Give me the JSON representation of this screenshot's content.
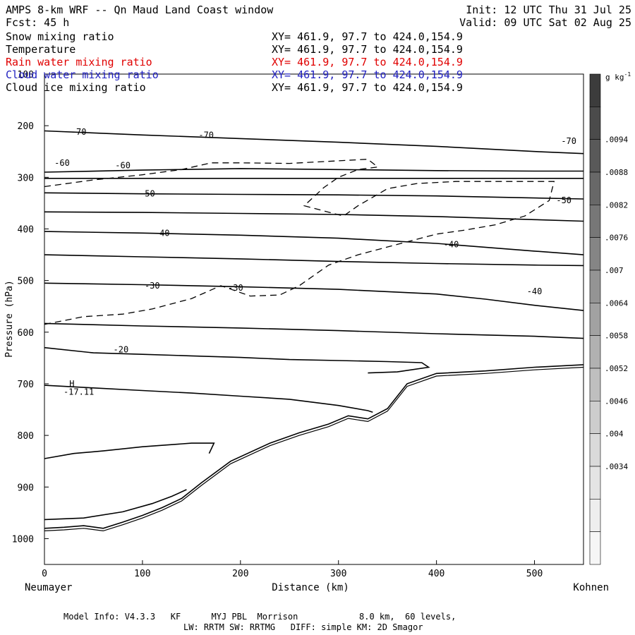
{
  "header": {
    "title": "AMPS 8-km WRF -- Qn Maud Land Coast window",
    "init": "Init: 12 UTC Thu 31 Jul 25",
    "fcst": "Fcst:   45 h",
    "valid": "Valid: 09 UTC Sat 02 Aug 25"
  },
  "legend": [
    {
      "label": "Snow mixing ratio",
      "xy": "XY= 461.9, 97.7 to 424.0,154.9",
      "color": "#000000"
    },
    {
      "label": "Temperature",
      "xy": "XY= 461.9, 97.7 to 424.0,154.9",
      "color": "#000000"
    },
    {
      "label": "Rain water mixing ratio",
      "xy": "XY= 461.9, 97.7 to 424.0,154.9",
      "color": "#e00000"
    },
    {
      "label": "Cloud water mixing ratio",
      "xy": "XY= 461.9, 97.7 to 424.0,154.9",
      "color": "#2020c0"
    },
    {
      "label": "Cloud ice mixing ratio",
      "xy": "XY= 461.9, 97.7 to 424.0,154.9",
      "color": "#000000"
    }
  ],
  "footer": {
    "line1": "Model Info: V4.3.3   KF      MYJ PBL  Morrison            8.0 km,  60 levels,",
    "line2": "LW: RRTM SW: RRTMG   DIFF: simple KM: 2D Smagor"
  },
  "chart_data": {
    "type": "contour",
    "ylabel": "Pressure (hPa)",
    "xlabel": "Distance (km)",
    "x_left_label": "Neumayer",
    "x_right_label": "Kohnen",
    "xlim": [
      0,
      550
    ],
    "ylim": [
      1050,
      100
    ],
    "x_ticks": [
      0,
      100,
      200,
      300,
      400,
      500
    ],
    "y_ticks": [
      100,
      200,
      300,
      400,
      500,
      600,
      700,
      800,
      900,
      1000
    ],
    "colorbar": {
      "unit": "g kg",
      "unit_exp": "-1",
      "ticks": [
        ".0094",
        ".0088",
        ".0082",
        ".0076",
        ".007",
        ".0064",
        ".0058",
        ".0052",
        ".0046",
        ".004",
        ".0034"
      ],
      "colors": [
        "#3c3c3c",
        "#4b4b4b",
        "#595959",
        "#686868",
        "#777777",
        "#858585",
        "#949494",
        "#a2a2a2",
        "#b1b1b1",
        "#bfbfbf",
        "#cdcdcd",
        "#dadada",
        "#e4e4e4",
        "#eeeeee",
        "#f6f6f6"
      ]
    },
    "temperature_contours": [
      {
        "level": -70,
        "points": [
          [
            0,
            210
          ],
          [
            100,
            218
          ],
          [
            200,
            225
          ],
          [
            300,
            232
          ],
          [
            400,
            240
          ],
          [
            500,
            250
          ],
          [
            550,
            254
          ]
        ]
      },
      {
        "level": -70,
        "points": [
          [
            0,
            290
          ],
          [
            100,
            286
          ],
          [
            200,
            283
          ],
          [
            300,
            285
          ],
          [
            400,
            287
          ],
          [
            500,
            288
          ],
          [
            550,
            288
          ]
        ]
      },
      {
        "level": -60,
        "points": [
          [
            0,
            302
          ],
          [
            100,
            302
          ],
          [
            200,
            302
          ],
          [
            300,
            302
          ],
          [
            400,
            302
          ],
          [
            500,
            302
          ],
          [
            550,
            302
          ]
        ]
      },
      {
        "level": -60,
        "points": [
          [
            0,
            330
          ],
          [
            100,
            332
          ],
          [
            200,
            333
          ],
          [
            300,
            334
          ],
          [
            400,
            336
          ],
          [
            500,
            340
          ],
          [
            550,
            342
          ]
        ]
      },
      {
        "level": null,
        "points": [
          [
            0,
            367
          ],
          [
            100,
            368
          ],
          [
            200,
            370
          ],
          [
            300,
            372
          ],
          [
            400,
            376
          ],
          [
            500,
            382
          ],
          [
            550,
            385
          ]
        ]
      },
      {
        "level": -50,
        "points": [
          [
            0,
            405
          ],
          [
            100,
            408
          ],
          [
            200,
            412
          ],
          [
            300,
            418
          ],
          [
            400,
            428
          ],
          [
            500,
            443
          ],
          [
            550,
            450
          ]
        ]
      },
      {
        "level": null,
        "points": [
          [
            0,
            450
          ],
          [
            100,
            454
          ],
          [
            200,
            458
          ],
          [
            300,
            463
          ],
          [
            400,
            467
          ],
          [
            500,
            470
          ],
          [
            550,
            471
          ]
        ]
      },
      {
        "level": -40,
        "points": [
          [
            0,
            505
          ],
          [
            100,
            508
          ],
          [
            200,
            512
          ],
          [
            300,
            517
          ],
          [
            400,
            526
          ],
          [
            450,
            536
          ],
          [
            500,
            548
          ],
          [
            550,
            558
          ]
        ]
      },
      {
        "level": null,
        "points": [
          [
            0,
            583
          ],
          [
            100,
            588
          ],
          [
            200,
            592
          ],
          [
            300,
            597
          ],
          [
            400,
            603
          ],
          [
            500,
            608
          ],
          [
            550,
            612
          ]
        ]
      },
      {
        "level": -30,
        "points": [
          [
            0,
            630
          ],
          [
            50,
            640
          ],
          [
            100,
            643
          ],
          [
            150,
            646
          ],
          [
            200,
            649
          ],
          [
            250,
            653
          ],
          [
            300,
            655
          ],
          [
            350,
            657
          ],
          [
            385,
            659
          ],
          [
            392,
            668
          ],
          [
            360,
            677
          ],
          [
            330,
            679
          ]
        ]
      },
      {
        "level": -20,
        "points": [
          [
            0,
            703
          ],
          [
            50,
            708
          ],
          [
            100,
            713
          ],
          [
            150,
            718
          ],
          [
            200,
            724
          ],
          [
            250,
            730
          ],
          [
            300,
            742
          ],
          [
            330,
            752
          ],
          [
            335,
            755
          ]
        ]
      },
      {
        "level": -20,
        "points": [
          [
            0,
            845
          ],
          [
            30,
            835
          ],
          [
            60,
            830
          ],
          [
            100,
            822
          ],
          [
            150,
            815
          ],
          [
            173,
            815
          ],
          [
            168,
            835
          ]
        ]
      },
      {
        "level": null,
        "points": [
          [
            0,
            963
          ],
          [
            40,
            960
          ],
          [
            80,
            948
          ],
          [
            110,
            932
          ],
          [
            130,
            918
          ],
          [
            145,
            905
          ]
        ]
      }
    ],
    "terrain": [
      [
        0,
        980
      ],
      [
        20,
        978
      ],
      [
        40,
        975
      ],
      [
        60,
        980
      ],
      [
        80,
        968
      ],
      [
        100,
        955
      ],
      [
        120,
        940
      ],
      [
        140,
        922
      ],
      [
        160,
        892
      ],
      [
        190,
        850
      ],
      [
        230,
        815
      ],
      [
        260,
        795
      ],
      [
        290,
        778
      ],
      [
        310,
        762
      ],
      [
        330,
        768
      ],
      [
        350,
        748
      ],
      [
        370,
        700
      ],
      [
        400,
        680
      ],
      [
        450,
        675
      ],
      [
        500,
        668
      ],
      [
        550,
        663
      ]
    ],
    "snow_dashed": [
      {
        "points": [
          [
            0,
            318
          ],
          [
            50,
            305
          ],
          [
            100,
            295
          ],
          [
            140,
            285
          ],
          [
            170,
            272
          ],
          [
            200,
            272
          ],
          [
            250,
            273
          ],
          [
            300,
            268
          ],
          [
            330,
            265
          ],
          [
            340,
            280
          ],
          [
            320,
            285
          ],
          [
            300,
            300
          ],
          [
            285,
            320
          ],
          [
            265,
            355
          ],
          [
            305,
            375
          ],
          [
            320,
            355
          ],
          [
            350,
            322
          ],
          [
            380,
            312
          ],
          [
            420,
            308
          ],
          [
            480,
            308
          ],
          [
            520,
            308
          ],
          [
            515,
            345
          ],
          [
            490,
            375
          ],
          [
            460,
            392
          ],
          [
            430,
            402
          ],
          [
            400,
            410
          ],
          [
            360,
            430
          ],
          [
            320,
            450
          ],
          [
            290,
            470
          ],
          [
            260,
            510
          ],
          [
            240,
            528
          ],
          [
            210,
            530
          ],
          [
            180,
            510
          ],
          [
            150,
            535
          ],
          [
            110,
            555
          ],
          [
            80,
            565
          ],
          [
            40,
            570
          ],
          [
            0,
            585
          ]
        ]
      }
    ],
    "labels": [
      {
        "text": "-70",
        "x": 35,
        "y": 212
      },
      {
        "text": "-70",
        "x": 165,
        "y": 218
      },
      {
        "text": "-70",
        "x": 535,
        "y": 230
      },
      {
        "text": "-60",
        "x": 18,
        "y": 272
      },
      {
        "text": "-60",
        "x": 80,
        "y": 277
      },
      {
        "text": "-50",
        "x": 105,
        "y": 332
      },
      {
        "text": "-50",
        "x": 530,
        "y": 345
      },
      {
        "text": "-40",
        "x": 120,
        "y": 408
      },
      {
        "text": "-40",
        "x": 415,
        "y": 430
      },
      {
        "text": "-30",
        "x": 110,
        "y": 510
      },
      {
        "text": "-30",
        "x": 195,
        "y": 514
      },
      {
        "text": "-40",
        "x": 500,
        "y": 521
      },
      {
        "text": "-20",
        "x": 78,
        "y": 634
      },
      {
        "text": "H",
        "x": 28,
        "y": 700
      },
      {
        "text": "-17.11",
        "x": 35,
        "y": 716
      }
    ]
  }
}
